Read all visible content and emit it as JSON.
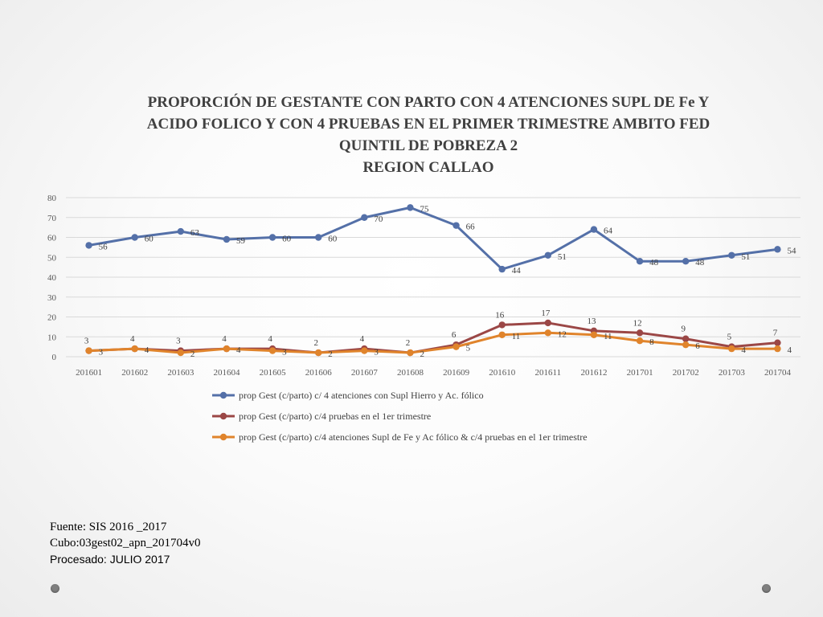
{
  "chart_data": {
    "type": "line",
    "title_lines": [
      "PROPORCIÓN DE GESTANTE  CON PARTO CON 4 ATENCIONES SUPL DE Fe Y",
      "ACIDO FOLICO  Y CON 4 PRUEBAS EN EL PRIMER TRIMESTRE AMBITO FED",
      "QUINTIL DE POBREZA 2",
      "REGION CALLAO"
    ],
    "categories": [
      "201601",
      "201602",
      "201603",
      "201604",
      "201605",
      "201606",
      "201607",
      "201608",
      "201609",
      "201610",
      "201611",
      "201612",
      "201701",
      "201702",
      "201703",
      "201704"
    ],
    "ylim": [
      0,
      80
    ],
    "yticks": [
      0,
      10,
      20,
      30,
      40,
      50,
      60,
      70,
      80
    ],
    "grid": true,
    "legend_position": "bottom",
    "series": [
      {
        "name": "prop Gest (c/parto) c/ 4 atenciones con Supl Hierro y Ac. fólico",
        "color": "#5470a8",
        "values": [
          56,
          60,
          63,
          59,
          60,
          60,
          70,
          75,
          66,
          44,
          51,
          64,
          48,
          48,
          51,
          54
        ],
        "label_pos": "right-below"
      },
      {
        "name": "prop Gest (c/parto) c/4 pruebas en el 1er trimestre",
        "color": "#9b4746",
        "values": [
          3,
          4,
          3,
          4,
          4,
          2,
          4,
          2,
          6,
          16,
          17,
          13,
          12,
          9,
          5,
          7
        ],
        "label_pos": "above"
      },
      {
        "name": "prop Gest (c/parto) c/4 atenciones Supl de Fe y Ac fólico & c/4 pruebas en el 1er trimestre",
        "color": "#e0842c",
        "values": [
          3,
          4,
          2,
          4,
          3,
          2,
          3,
          2,
          5,
          11,
          12,
          11,
          8,
          6,
          4,
          4
        ],
        "label_pos": "right-below"
      }
    ]
  },
  "source": {
    "line1": "Fuente: SIS 2016 _2017",
    "line2": "Cubo:03gest02_apn_201704v0",
    "line3": "Procesado: JULIO 2017"
  }
}
